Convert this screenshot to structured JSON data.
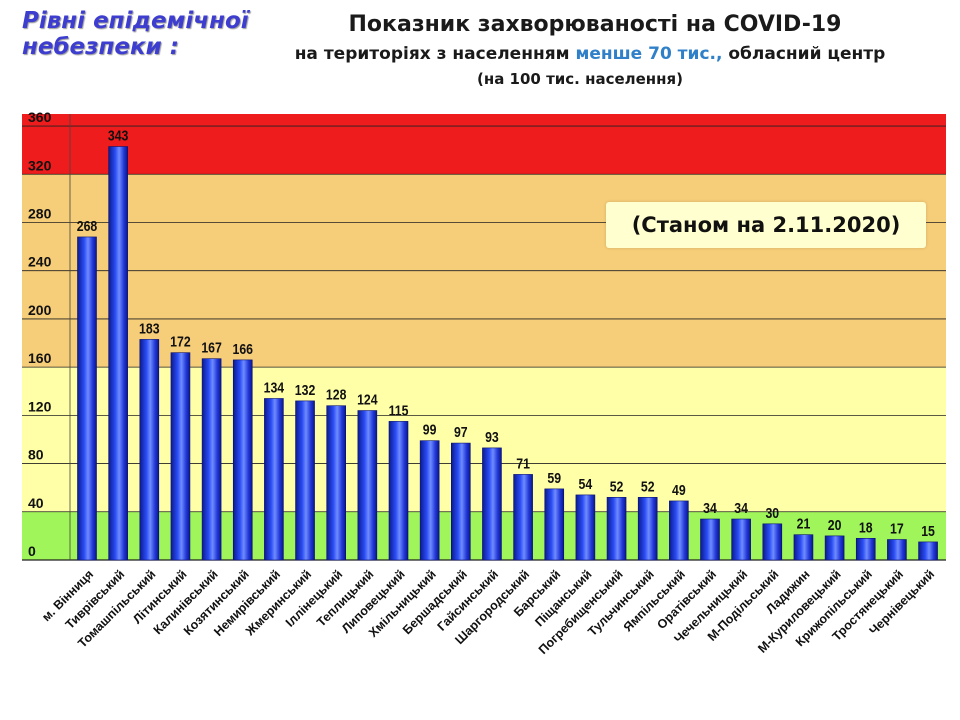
{
  "legend_title": "Рівні епідемічної небезпеки :",
  "title_line1": "Показник захворюваності на COVID-19",
  "title_line2_prefix": "на територіях з населенням ",
  "title_line2_highlight": "менше 70 тис.,",
  "title_line2_suffix": " обласний центр",
  "title_line3": "(на 100  тис. населення)",
  "date_label": "(Станом на 2.11.2020)",
  "colors": {
    "bar": "#1d2fd6",
    "zone_red": "#ee1c1c",
    "zone_orange": "#f6cd78",
    "zone_yellow": "#ffffa8",
    "zone_green": "#9ff55a",
    "title_highlight": "#2f80c8"
  },
  "chart_data": {
    "type": "bar",
    "categories": [
      "м. Вінниця",
      "Тиврівський",
      "Томашпільський",
      "Літинський",
      "Калинівський",
      "Козятинський",
      "Немирівський",
      "Жмеринський",
      "Іллінецький",
      "Теплицький",
      "Липовецький",
      "Хмільницький",
      "Бершадський",
      "Гайсинський",
      "Шаргородський",
      "Барський",
      "Піщанський",
      "Погребищенський",
      "Тульчинський",
      "Ямпільський",
      "Оратівський",
      "Чечельницький",
      "М-Подільський",
      "Ладижин",
      "М-Куриловецький",
      "Крижопільський",
      "Тростянецький",
      "Чернівецький"
    ],
    "values": [
      268,
      343,
      183,
      172,
      167,
      166,
      134,
      132,
      128,
      124,
      115,
      99,
      97,
      93,
      71,
      59,
      54,
      52,
      52,
      49,
      34,
      34,
      30,
      21,
      20,
      18,
      17,
      15
    ],
    "ylim": [
      0,
      370
    ],
    "yticks": [
      0,
      40,
      80,
      120,
      160,
      200,
      240,
      280,
      320,
      360
    ],
    "zones": [
      {
        "from": 0,
        "to": 40,
        "color": "#9ff55a"
      },
      {
        "from": 40,
        "to": 160,
        "color": "#ffffa8"
      },
      {
        "from": 160,
        "to": 320,
        "color": "#f6cd78"
      },
      {
        "from": 320,
        "to": 370,
        "color": "#ee1c1c"
      }
    ],
    "grid": true
  }
}
